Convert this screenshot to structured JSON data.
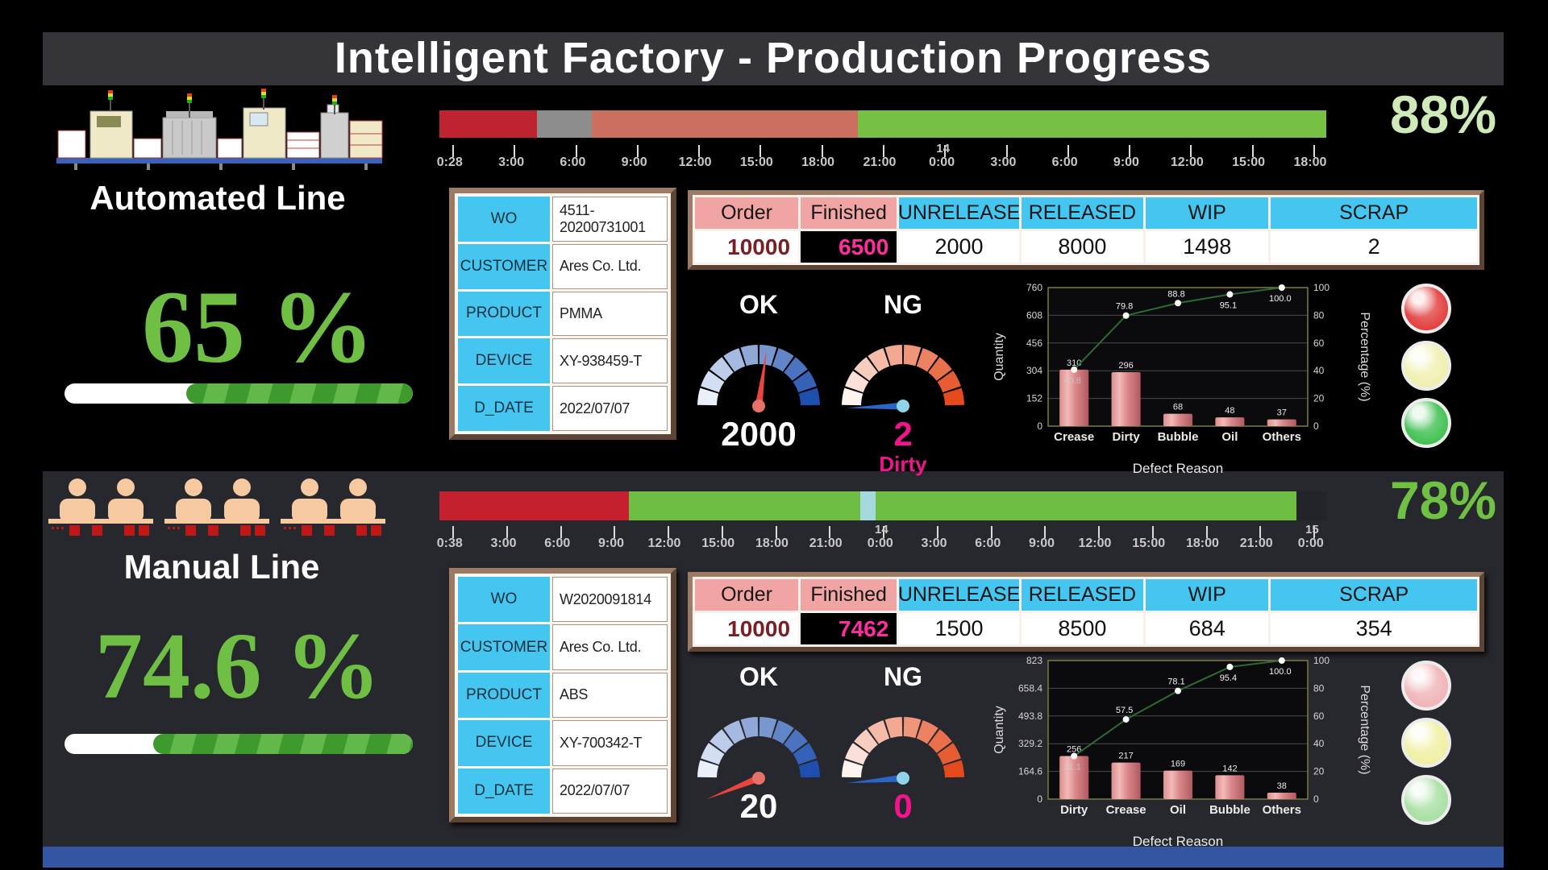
{
  "title": "Intelligent Factory - Production Progress",
  "colors": {
    "cyan_header": "#45c6f0",
    "pink_header": "#f0a4a4",
    "green_percent": "#6fbf44",
    "magenta": "#f2148c",
    "dark_red_order": "#7a1f24",
    "bottom_strip_blue": "#3356a2"
  },
  "lines": [
    {
      "name": "Automated Line",
      "line_percent": "88%",
      "completion": "65 %",
      "completion_pct": 65,
      "timeline": {
        "segments": [
          {
            "color": "#bf2331",
            "pct": 11
          },
          {
            "color": "#8d8d8d",
            "pct": 6.2
          },
          {
            "color": "#cd6f5f",
            "pct": 30
          },
          {
            "color": "#76c043",
            "pct": 52.8
          }
        ],
        "ticks": [
          {
            "t": "0:28"
          },
          {
            "t": "3:00"
          },
          {
            "t": "6:00"
          },
          {
            "t": "9:00"
          },
          {
            "t": "12:00"
          },
          {
            "t": "15:00"
          },
          {
            "t": "18:00"
          },
          {
            "t": "21:00"
          },
          {
            "t": "0:00",
            "day": "14"
          },
          {
            "t": "3:00"
          },
          {
            "t": "6:00"
          },
          {
            "t": "9:00"
          },
          {
            "t": "12:00"
          },
          {
            "t": "15:00"
          },
          {
            "t": "18:00"
          }
        ]
      },
      "info": [
        {
          "label": "WO",
          "value": "4511-20200731001"
        },
        {
          "label": "CUSTOMER",
          "value": "Ares Co. Ltd."
        },
        {
          "label": "PRODUCT",
          "value": "PMMA"
        },
        {
          "label": "DEVICE",
          "value": "XY-938459-T"
        },
        {
          "label": "D_DATE",
          "value": "2022/07/07"
        }
      ],
      "order": {
        "headers": [
          "Order",
          "Finished",
          "UNRELEASE",
          "RELEASED",
          "WIP",
          "SCRAP"
        ],
        "values": [
          "10000",
          "6500",
          "2000",
          "8000",
          "1498",
          "2"
        ]
      },
      "gauges": [
        {
          "label": "OK",
          "value": "2000",
          "needle_deg": 8,
          "arc": [
            "#e9f0fa",
            "#1e4fae"
          ],
          "needle_color": "#e8453c",
          "hub": "#e8706a",
          "value_style": "white"
        },
        {
          "label": "NG",
          "value": "2",
          "defect": "Dirty",
          "needle_deg": -92,
          "arc": [
            "#fdf3ee",
            "#e44a1c"
          ],
          "needle_color": "#2b66c4",
          "hub": "#8fd4e8",
          "value_style": "magenta"
        }
      ],
      "traffic": [
        "#e23c3c",
        "#f0efae",
        "#3fc04f"
      ]
    },
    {
      "name": "Manual Line",
      "line_percent": "78%",
      "completion": "74.6 %",
      "completion_pct": 74.6,
      "timeline": {
        "segments": [
          {
            "color": "#c5202e",
            "pct": 21.4
          },
          {
            "color": "#6fbe44",
            "pct": 26.1
          },
          {
            "color": "#a6d9de",
            "pct": 1.7
          },
          {
            "color": "#6fbe44",
            "pct": 47.4
          },
          {
            "color": "#23232a",
            "pct": 3.4
          }
        ],
        "ticks": [
          {
            "t": "0:38"
          },
          {
            "t": "3:00"
          },
          {
            "t": "6:00"
          },
          {
            "t": "9:00"
          },
          {
            "t": "12:00"
          },
          {
            "t": "15:00"
          },
          {
            "t": "18:00"
          },
          {
            "t": "21:00"
          },
          {
            "t": "0:00",
            "day": "14"
          },
          {
            "t": "3:00"
          },
          {
            "t": "6:00"
          },
          {
            "t": "9:00"
          },
          {
            "t": "12:00"
          },
          {
            "t": "15:00"
          },
          {
            "t": "18:00"
          },
          {
            "t": "21:00"
          },
          {
            "t": "0:00",
            "day": "15"
          }
        ]
      },
      "info": [
        {
          "label": "WO",
          "value": "W2020091814"
        },
        {
          "label": "CUSTOMER",
          "value": "Ares Co. Ltd."
        },
        {
          "label": "PRODUCT",
          "value": "ABS"
        },
        {
          "label": "DEVICE",
          "value": "XY-700342-T"
        },
        {
          "label": "D_DATE",
          "value": "2022/07/07"
        }
      ],
      "order": {
        "headers": [
          "Order",
          "Finished",
          "UNRELEASE",
          "RELEASED",
          "WIP",
          "SCRAP"
        ],
        "values": [
          "10000",
          "7462",
          "1500",
          "8500",
          "684",
          "354"
        ]
      },
      "gauges": [
        {
          "label": "OK",
          "value": "20",
          "needle_deg": -112,
          "arc": [
            "#e9f0fa",
            "#1e4fae"
          ],
          "needle_color": "#e8453c",
          "hub": "#e8706a",
          "value_style": "white"
        },
        {
          "label": "NG",
          "value": "0",
          "needle_deg": -95,
          "arc": [
            "#fdf3ee",
            "#e44a1c"
          ],
          "needle_color": "#2b66c4",
          "hub": "#8fd4e8",
          "value_style": "magenta"
        }
      ],
      "traffic": [
        "#efb3b6",
        "#f0f0a2",
        "#a8dfa2"
      ]
    }
  ],
  "chart_data": [
    {
      "type": "pareto",
      "categories": [
        "Crease",
        "Dirty",
        "Bubble",
        "Oil",
        "Others"
      ],
      "bar_values": [
        310,
        296,
        68,
        48,
        37
      ],
      "cumulative_pct": [
        40.8,
        79.8,
        88.8,
        95.1,
        100.0
      ],
      "ylabel": "Quantity",
      "y2label": "Percentage (%)",
      "xlabel": "Defect Reason",
      "yticks": [
        0,
        152,
        304,
        456,
        608,
        760
      ],
      "ylim": [
        0,
        760
      ],
      "y2ticks": [
        0,
        20,
        40,
        60,
        80,
        100
      ],
      "y2lim": [
        0,
        100
      ],
      "grid": true,
      "legend": "none"
    },
    {
      "type": "pareto",
      "categories": [
        "Dirty",
        "Crease",
        "Oil",
        "Bubble",
        "Others"
      ],
      "bar_values": [
        256,
        217,
        169,
        142,
        38
      ],
      "cumulative_pct": [
        31.1,
        57.5,
        78.1,
        95.4,
        100.0
      ],
      "ylabel": "Quantity",
      "y2label": "Percentage (%)",
      "xlabel": "Defect Reason",
      "yticks": [
        0,
        164.6,
        329.2,
        493.8,
        658.4,
        823
      ],
      "ylim": [
        0,
        823
      ],
      "y2ticks": [
        0,
        20,
        40,
        60,
        80,
        100
      ],
      "y2lim": [
        0,
        100
      ],
      "grid": true,
      "legend": "none"
    }
  ]
}
